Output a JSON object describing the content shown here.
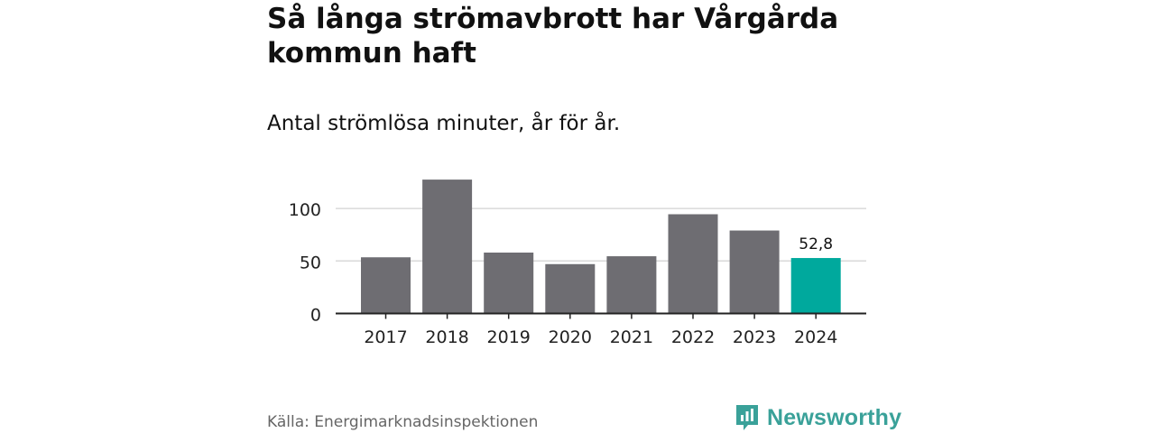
{
  "header": {
    "title": "Så långa strömavbrott har Vårgårda kommun haft",
    "subtitle": "Antal strömlösa minuter, år för år."
  },
  "footer": {
    "source": "Källa: Energimarknadsinspektionen",
    "brand": "Newsworthy",
    "brand_icon": "bar-chart-logo-icon"
  },
  "colors": {
    "bar": "#6e6d72",
    "highlight": "#00a99d",
    "grid": "#d9d9d9",
    "axis": "#222222",
    "brand": "#3aa199"
  },
  "chart_data": {
    "type": "bar",
    "title": "Så långa strömavbrott har Vårgårda kommun haft",
    "subtitle": "Antal strömlösa minuter, år för år.",
    "xlabel": "",
    "ylabel": "",
    "categories": [
      "2017",
      "2018",
      "2019",
      "2020",
      "2021",
      "2022",
      "2023",
      "2024"
    ],
    "values": [
      53.5,
      127.5,
      58,
      47,
      54.5,
      94.5,
      79,
      52.8
    ],
    "ylim": [
      0,
      130
    ],
    "yticks": [
      0,
      50,
      100
    ],
    "ytick_labels": [
      "0",
      "50",
      "100"
    ],
    "grid": true,
    "highlight_index": 7,
    "data_labels": [
      {
        "index": 7,
        "text": "52,8"
      }
    ],
    "legend": "none"
  }
}
